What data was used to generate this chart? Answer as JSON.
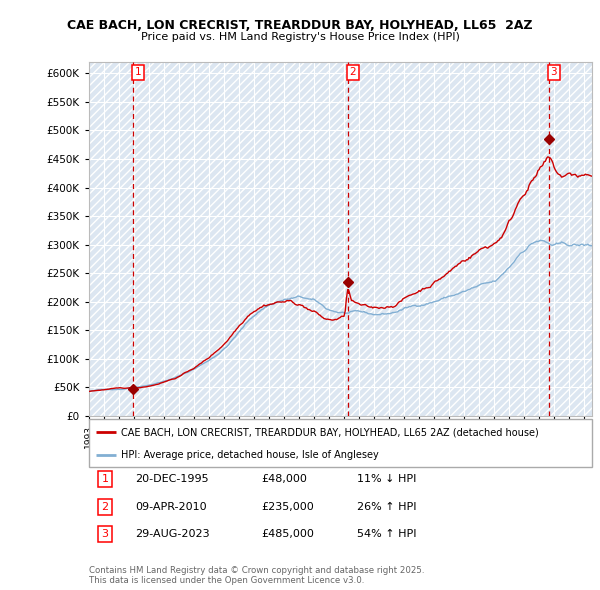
{
  "title": "CAE BACH, LON CRECRIST, TREARDDUR BAY, HOLYHEAD, LL65  2AZ",
  "subtitle": "Price paid vs. HM Land Registry's House Price Index (HPI)",
  "ylim": [
    0,
    620000
  ],
  "yticks": [
    0,
    50000,
    100000,
    150000,
    200000,
    250000,
    300000,
    350000,
    400000,
    450000,
    500000,
    550000,
    600000
  ],
  "ytick_labels": [
    "£0",
    "£50K",
    "£100K",
    "£150K",
    "£200K",
    "£250K",
    "£300K",
    "£350K",
    "£400K",
    "£450K",
    "£500K",
    "£550K",
    "£600K"
  ],
  "xlim_start": 1993.0,
  "xlim_end": 2026.5,
  "background_color": "#ffffff",
  "plot_bg_color": "#dce6f1",
  "grid_color": "#ffffff",
  "sale_line_color": "#cc0000",
  "hpi_line_color": "#82afd3",
  "sale_marker_color": "#990000",
  "vertical_line_color": "#cc0000",
  "transaction_markers": [
    {
      "num": 1,
      "year": 1995.97,
      "price": 48000
    },
    {
      "num": 2,
      "year": 2010.27,
      "price": 235000
    },
    {
      "num": 3,
      "year": 2023.66,
      "price": 485000
    }
  ],
  "legend_sale_label": "CAE BACH, LON CRECRIST, TREARDDUR BAY, HOLYHEAD, LL65 2AZ (detached house)",
  "legend_hpi_label": "HPI: Average price, detached house, Isle of Anglesey",
  "table_rows": [
    {
      "num": 1,
      "date": "20-DEC-1995",
      "price": "£48,000",
      "hpi": "11% ↓ HPI"
    },
    {
      "num": 2,
      "date": "09-APR-2010",
      "price": "£235,000",
      "hpi": "26% ↑ HPI"
    },
    {
      "num": 3,
      "date": "29-AUG-2023",
      "price": "£485,000",
      "hpi": "54% ↑ HPI"
    }
  ],
  "footer": "Contains HM Land Registry data © Crown copyright and database right 2025.\nThis data is licensed under the Open Government Licence v3.0."
}
